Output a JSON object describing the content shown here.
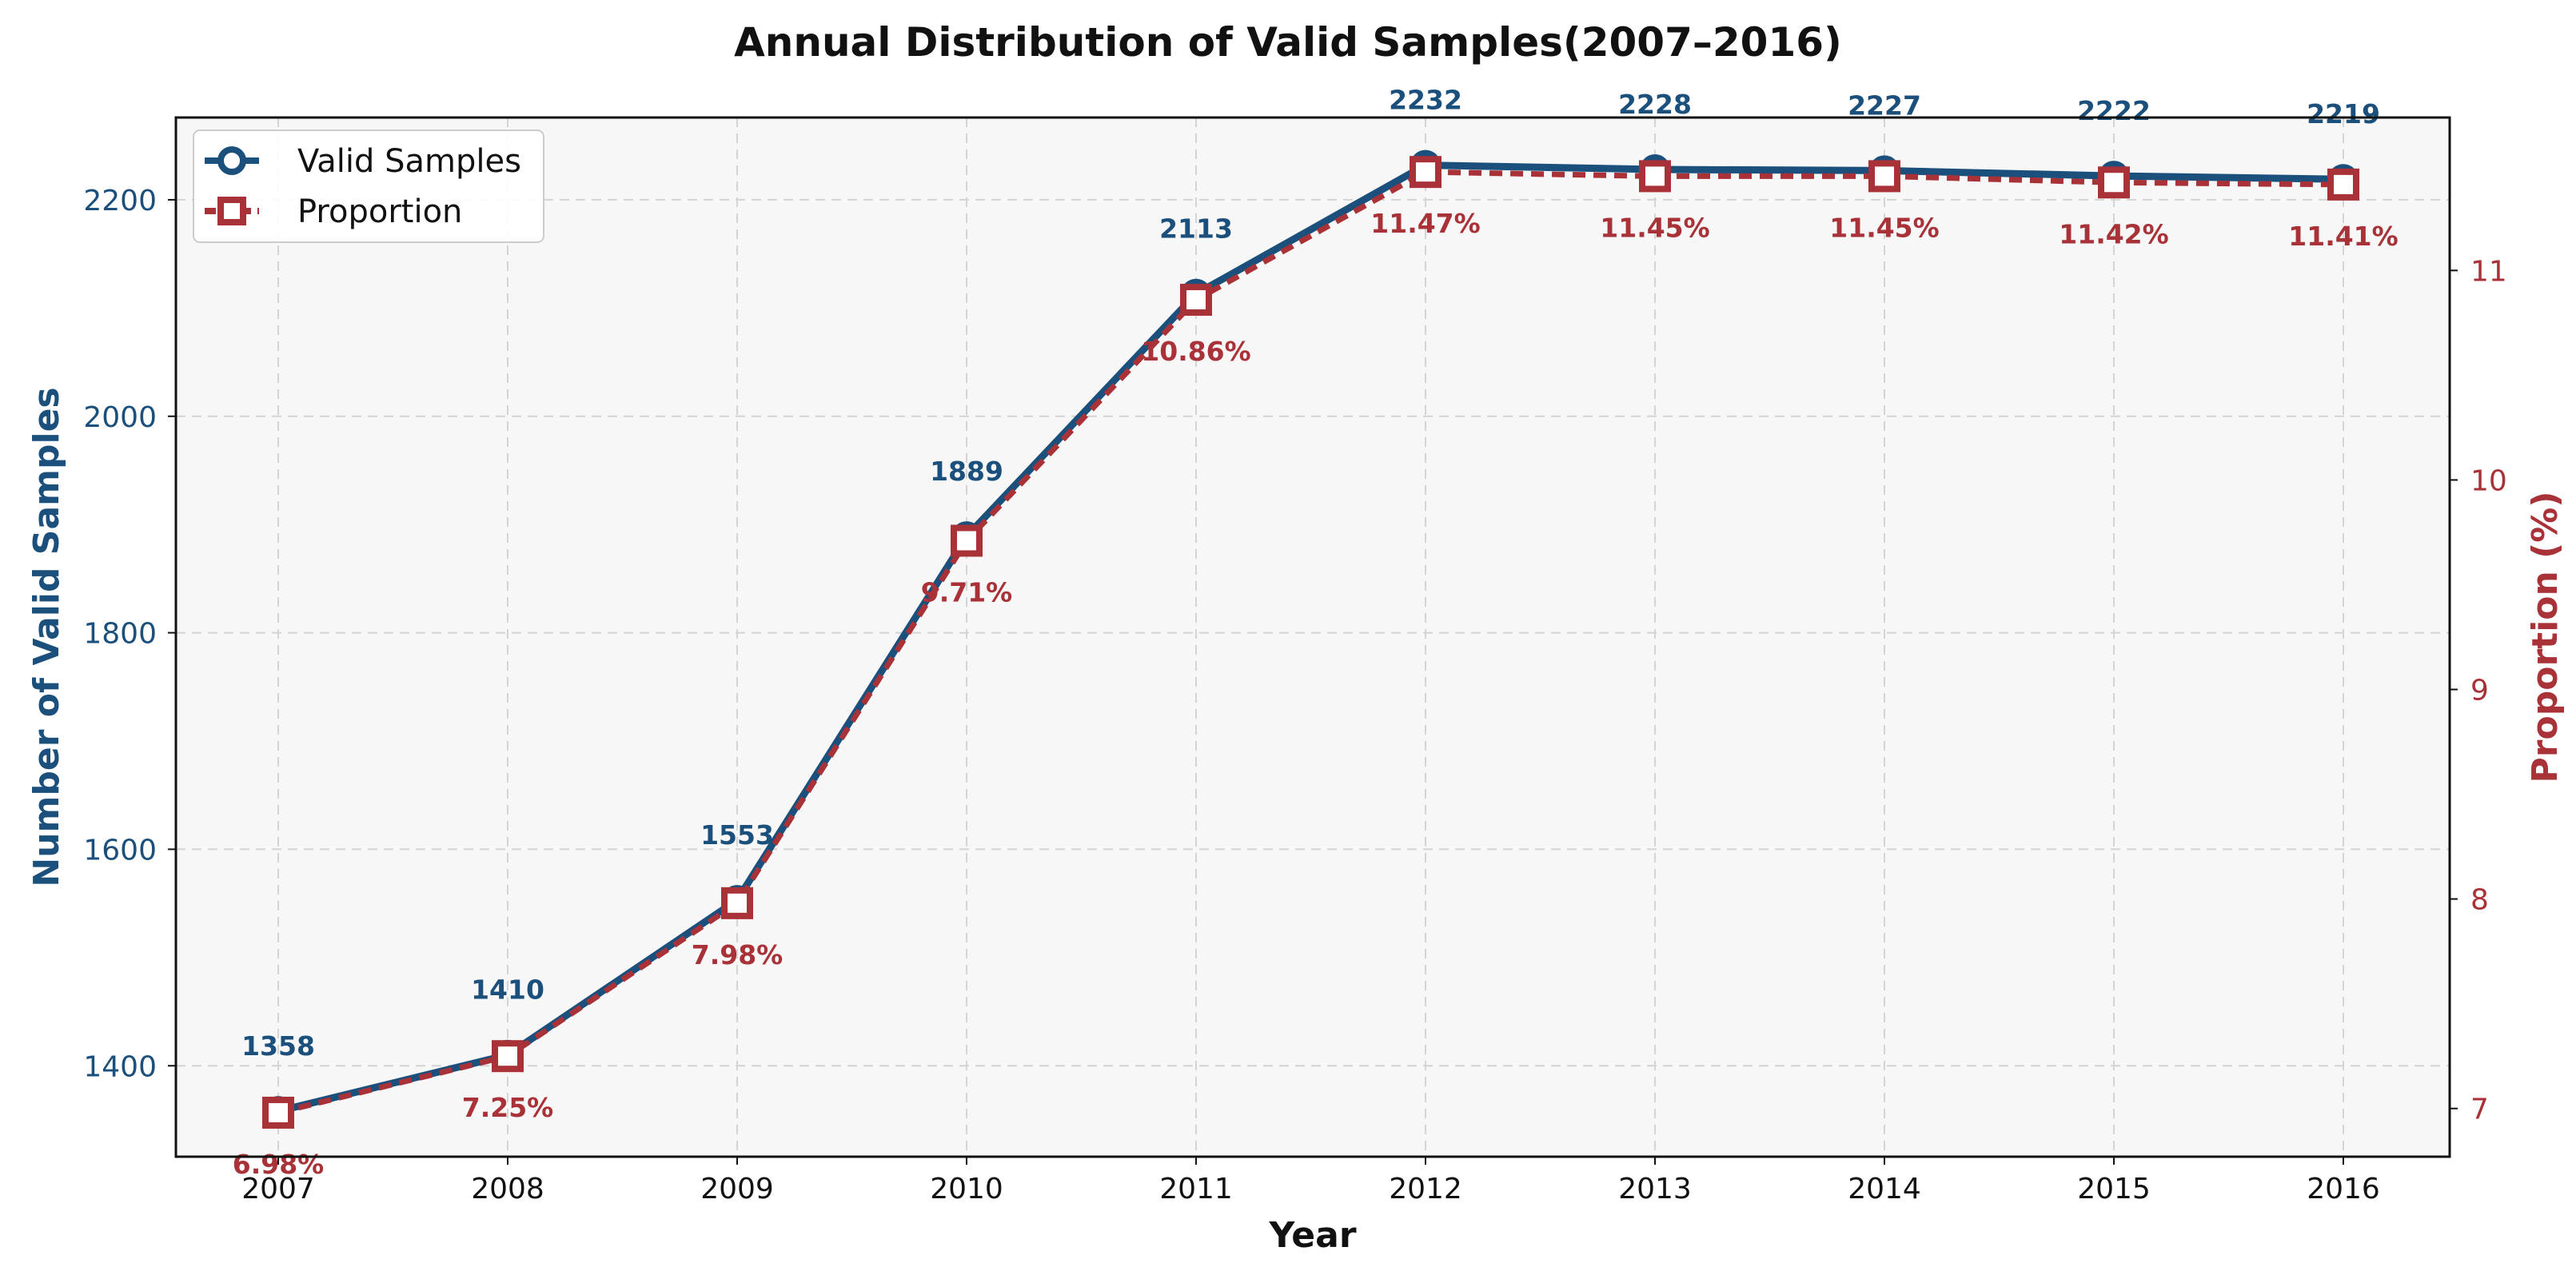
{
  "chart_data": {
    "type": "line",
    "title": "Annual Distribution of Valid Samples(2007–2016)",
    "xlabel": "Year",
    "ylabel_left": "Number of Valid Samples",
    "ylabel_right": "Proportion (%)",
    "categories": [
      "2007",
      "2008",
      "2009",
      "2010",
      "2011",
      "2012",
      "2013",
      "2014",
      "2015",
      "2016"
    ],
    "series": [
      {
        "name": "Valid Samples",
        "axis": "left",
        "marker": "circle",
        "color": "#1b4f7c",
        "values": [
          1358,
          1410,
          1553,
          1889,
          2113,
          2232,
          2228,
          2227,
          2222,
          2219
        ],
        "labels": [
          "1358",
          "1410",
          "1553",
          "1889",
          "2113",
          "2232",
          "2228",
          "2227",
          "2222",
          "2219"
        ]
      },
      {
        "name": "Proportion",
        "axis": "right",
        "marker": "square",
        "color": "#a83238",
        "values": [
          6.98,
          7.25,
          7.98,
          9.71,
          10.86,
          11.47,
          11.45,
          11.45,
          11.42,
          11.41
        ],
        "labels": [
          "6.98%",
          "7.25%",
          "7.98%",
          "9.71%",
          "10.86%",
          "11.47%",
          "11.45%",
          "11.45%",
          "11.42%",
          "11.41%"
        ]
      }
    ],
    "ylim_left": [
      1316,
      2276
    ],
    "yticks_left": [
      1400,
      1600,
      1800,
      2000,
      2200
    ],
    "ylim_right": [
      6.77,
      11.73
    ],
    "yticks_right": [
      7,
      8,
      9,
      10,
      11
    ],
    "grid": true,
    "legend": "top-left",
    "colors": {
      "left_axis": "#1b4f7c",
      "right_axis": "#a83238",
      "plot_bg": "#f7f7f7",
      "grid": "#d4d4d4"
    }
  }
}
